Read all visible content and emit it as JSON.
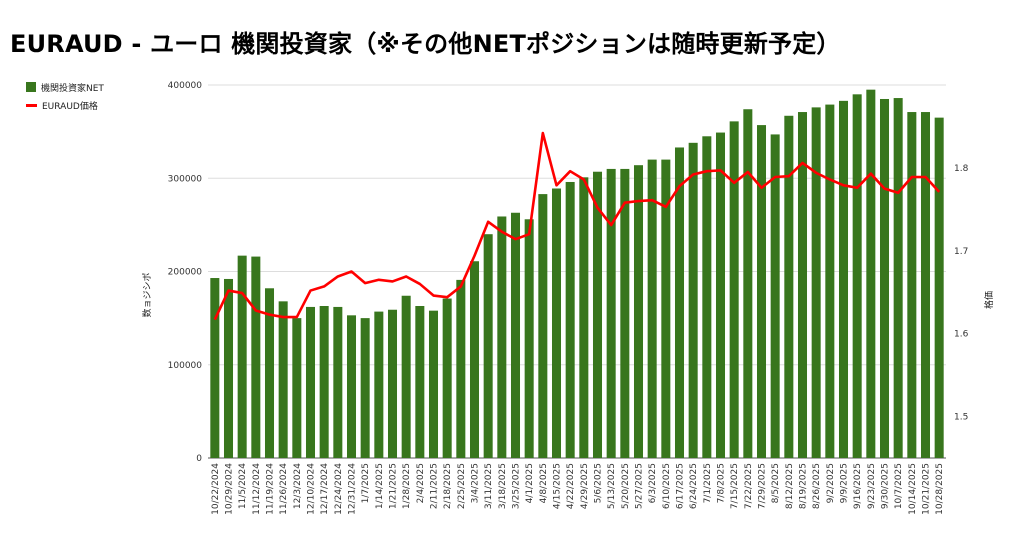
{
  "chart_data": {
    "type": "bar",
    "title": "EURAUD - ユーロ 機関投資家（※その他NETポジションは随時更新予定）",
    "ylabel_left": "数ョジシポ",
    "ylabel_right": "格価",
    "ylim_left": [
      0,
      400000
    ],
    "ylim_right": [
      1.45,
      1.9
    ],
    "yticks_left": [
      0,
      100000,
      200000,
      300000,
      400000
    ],
    "yticks_right": [
      1.5,
      1.6,
      1.7,
      1.8
    ],
    "grid": true,
    "legend_position": "top-left",
    "colors": {
      "bar": "#38761d",
      "line": "#ff0000"
    },
    "categories": [
      "10/22/2024",
      "10/29/2024",
      "11/5/2024",
      "11/12/2024",
      "11/19/2024",
      "11/26/2024",
      "12/3/2024",
      "12/10/2024",
      "12/17/2024",
      "12/24/2024",
      "12/31/2024",
      "1/7/2025",
      "1/14/2025",
      "1/21/2025",
      "1/28/2025",
      "2/4/2025",
      "2/11/2025",
      "2/18/2025",
      "2/25/2025",
      "3/4/2025",
      "3/11/2025",
      "3/18/2025",
      "3/25/2025",
      "4/1/2025",
      "4/8/2025",
      "4/15/2025",
      "4/22/2025",
      "4/29/2025",
      "5/6/2025",
      "5/13/2025",
      "5/20/2025",
      "5/27/2025",
      "6/3/2025",
      "6/10/2025",
      "6/17/2025",
      "6/24/2025",
      "7/1/2025",
      "7/8/2025",
      "7/15/2025",
      "7/22/2025",
      "7/29/2025",
      "8/5/2025",
      "8/12/2025",
      "8/19/2025",
      "8/26/2025",
      "9/2/2025",
      "9/9/2025",
      "9/16/2025",
      "9/23/2025",
      "9/30/2025",
      "10/7/2025",
      "10/14/2025",
      "10/21/2025",
      "10/28/2025"
    ],
    "series": [
      {
        "name": "機関投資家NET",
        "kind": "bar",
        "axis": "left",
        "values": [
          193000,
          192000,
          217000,
          216000,
          182000,
          168000,
          150000,
          162000,
          163000,
          162000,
          153000,
          150000,
          157000,
          159000,
          174000,
          163000,
          158000,
          171000,
          191000,
          211000,
          240000,
          259000,
          263000,
          256000,
          283000,
          289000,
          296000,
          301000,
          307000,
          310000,
          310000,
          314000,
          320000,
          320000,
          333000,
          338000,
          345000,
          349000,
          361000,
          374000,
          357000,
          347000,
          367000,
          371000,
          376000,
          379000,
          383000,
          390000,
          395000,
          385000,
          386000,
          371000,
          371000,
          365000
        ]
      },
      {
        "name": "EURAUD価格",
        "kind": "line",
        "axis": "right",
        "values": [
          1.617,
          1.652,
          1.649,
          1.628,
          1.623,
          1.62,
          1.62,
          1.652,
          1.657,
          1.669,
          1.675,
          1.661,
          1.665,
          1.663,
          1.669,
          1.66,
          1.646,
          1.644,
          1.657,
          1.694,
          1.735,
          1.723,
          1.714,
          1.72,
          1.842,
          1.779,
          1.796,
          1.786,
          1.752,
          1.731,
          1.758,
          1.76,
          1.761,
          1.753,
          1.778,
          1.792,
          1.796,
          1.797,
          1.782,
          1.795,
          1.776,
          1.789,
          1.79,
          1.806,
          1.794,
          1.786,
          1.779,
          1.776,
          1.793,
          1.775,
          1.77,
          1.789,
          1.789,
          1.771
        ]
      }
    ]
  }
}
